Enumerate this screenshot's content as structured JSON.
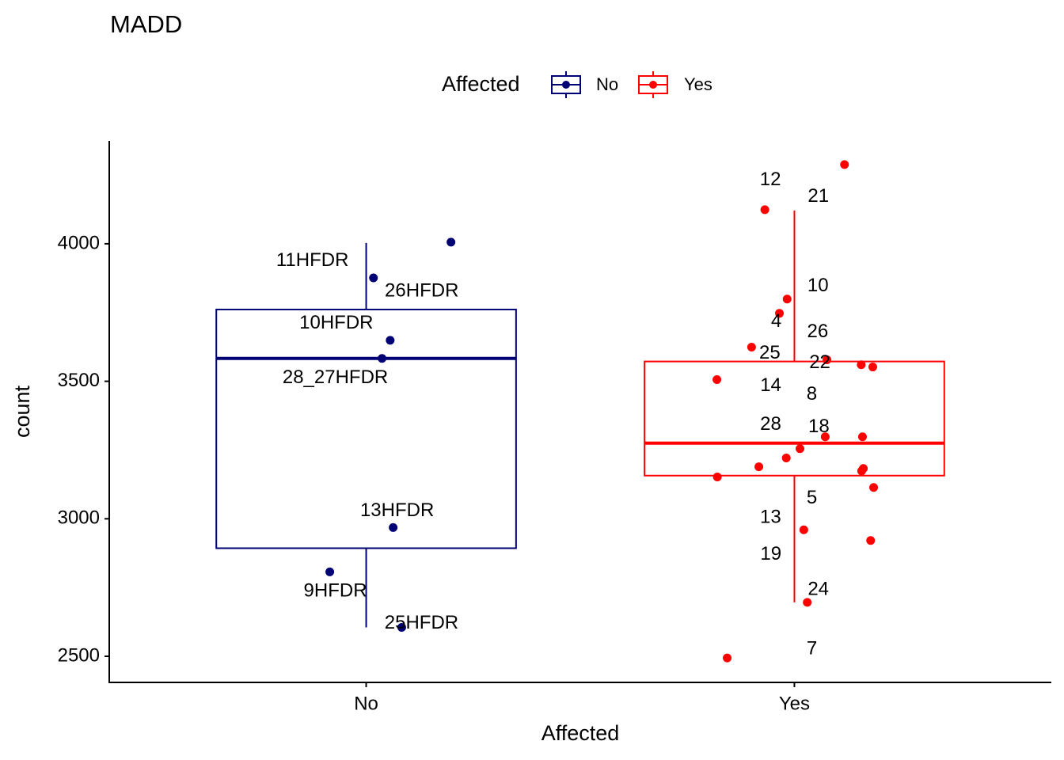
{
  "chart_data": {
    "type": "box",
    "title": "MADD",
    "x_label": "Affected",
    "y_label": "count",
    "legend_title": "Affected",
    "legend_position": "top",
    "categories": [
      "No",
      "Yes"
    ],
    "xlim": [
      0.4,
      2.6
    ],
    "ylim": [
      2405,
      4374
    ],
    "yticks": [
      2500,
      3000,
      3500,
      4000
    ],
    "series": [
      {
        "name": "No",
        "color": "#000075",
        "box": {
          "whisker_low": 2605,
          "q1": 2893,
          "median": 3583,
          "q3": 3761,
          "whisker_high": 4003
        },
        "points": {
          "x": [
            1.198,
            1.017,
            1.056,
            1.037,
            1.063,
            0.915,
            1.083
          ],
          "values": [
            4006,
            3876,
            3649,
            3583,
            2968,
            2807,
            2605
          ],
          "labels": [
            "11HFDR",
            "26HFDR",
            "10HFDR",
            "28_27HFDR",
            "13HFDR",
            "9HFDR",
            "25HFDR"
          ]
        }
      },
      {
        "name": "Yes",
        "color": "#ff0000",
        "box": {
          "whisker_low": 2696,
          "q1": 3157,
          "median": 3275,
          "q3": 3572,
          "whisker_high": 4121
        },
        "points": {
          "x": [
            2.117,
            1.931,
            1.983,
            1.965,
            1.9,
            2.076,
            2.156,
            2.183,
            1.819,
            2.072,
            2.159,
            2.013,
            1.981,
            1.917,
            2.161,
            2.157,
            1.82,
            2.185,
            2.022,
            2.178,
            2.03,
            1.843
          ],
          "values": [
            4288,
            4124,
            3799,
            3747,
            3624,
            3578,
            3560,
            3552,
            3506,
            3298,
            3298,
            3255,
            3221,
            3189,
            3183,
            3174,
            3152,
            3114,
            2960,
            2921,
            2696,
            2494
          ],
          "labels": [
            "21",
            "12",
            "10",
            "4",
            "25",
            "22",
            "26",
            "8",
            "14",
            "18",
            null,
            "28",
            null,
            null,
            null,
            null,
            null,
            "5",
            "13",
            "19",
            "24",
            "7"
          ]
        }
      }
    ]
  }
}
